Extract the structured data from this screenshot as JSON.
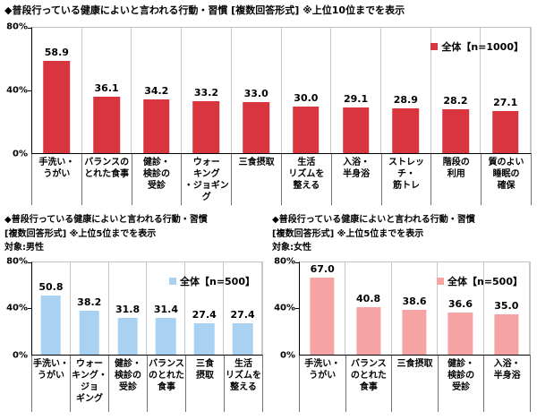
{
  "chart_data": [
    {
      "type": "bar",
      "title_lines": [
        "◆普段行っている健康によいと言われる行動・習慣 [複数回答形式] ※上位10位までを表示"
      ],
      "legend": "全体【n=1000】",
      "color": "#d8353f",
      "ylim": [
        0,
        80
      ],
      "yticks": [
        "80%",
        "40%",
        "0%"
      ],
      "grid": "vertical",
      "legend_position": "top-right",
      "categories": [
        [
          "手洗い・",
          "うがい"
        ],
        [
          "バランスの",
          "とれた食事"
        ],
        [
          "健診・",
          "検診の",
          "受診"
        ],
        [
          "ウォー",
          "キング",
          "・ジョギング"
        ],
        [
          "三食摂取"
        ],
        [
          "生活",
          "リズムを",
          "整える"
        ],
        [
          "入浴・",
          "半身浴"
        ],
        [
          "ストレッチ・",
          "筋トレ"
        ],
        [
          "階段の",
          "利用"
        ],
        [
          "質のよい",
          "睡眠の",
          "確保"
        ]
      ],
      "values": [
        58.9,
        36.1,
        34.2,
        33.2,
        33.0,
        30.0,
        29.1,
        28.9,
        28.2,
        27.1
      ]
    },
    {
      "type": "bar",
      "title_lines": [
        "◆普段行っている健康によいと言われる行動・習慣",
        "[複数回答形式] ※上位5位までを表示",
        "対象:男性"
      ],
      "legend": "全体【n=500】",
      "color": "#a9d2f2",
      "ylim": [
        0,
        80
      ],
      "yticks": [
        "80%",
        "40%",
        "0%"
      ],
      "grid": "vertical",
      "legend_position": "top-right",
      "categories": [
        [
          "手洗い・",
          "うがい"
        ],
        [
          "ウォー",
          "キング・",
          "ジョ",
          "ギング"
        ],
        [
          "健診・",
          "検診の",
          "受診"
        ],
        [
          "バランス",
          "のとれた",
          "食事"
        ],
        [
          "三食",
          "摂取"
        ],
        [
          "生活",
          "リズムを",
          "整える"
        ]
      ],
      "values": [
        50.8,
        38.2,
        31.8,
        31.4,
        27.4,
        27.4
      ]
    },
    {
      "type": "bar",
      "title_lines": [
        "◆普段行っている健康によいと言われる行動・習慣",
        "[複数回答形式] ※上位5位までを表示",
        "対象:女性"
      ],
      "legend": "全体【n=500】",
      "color": "#f6a3a3",
      "ylim": [
        0,
        80
      ],
      "yticks": [
        "80%",
        "40%",
        "0%"
      ],
      "grid": "vertical",
      "legend_position": "top-right",
      "categories": [
        [
          "手洗い・",
          "うがい"
        ],
        [
          "バランス",
          "のとれた",
          "食事"
        ],
        [
          "三食摂取"
        ],
        [
          "健診・",
          "検診の",
          "受診"
        ],
        [
          "入浴・",
          "半身浴"
        ]
      ],
      "values": [
        67.0,
        40.8,
        38.6,
        36.6,
        35.0
      ]
    }
  ]
}
